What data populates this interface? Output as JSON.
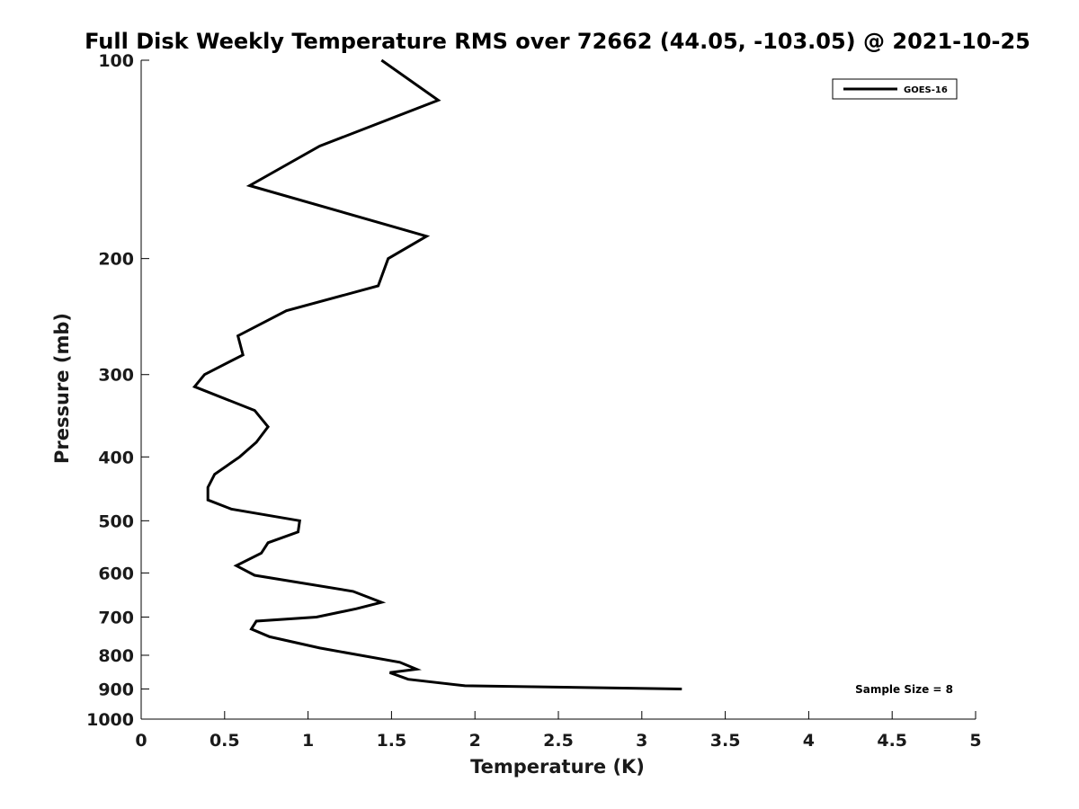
{
  "chart_data": {
    "type": "line",
    "title": "Full Disk Weekly Temperature RMS over 72662 (44.05, -103.05) @ 2021-10-25",
    "xlabel": "Temperature (K)",
    "ylabel": "Pressure (mb)",
    "xlim": [
      0,
      5
    ],
    "ylim": [
      1000,
      100
    ],
    "y_scale": "log",
    "y_reversed": true,
    "x_ticks": [
      0,
      0.5,
      1,
      1.5,
      2,
      2.5,
      3,
      3.5,
      4,
      4.5,
      5
    ],
    "x_tick_labels": [
      "0",
      "0.5",
      "1",
      "1.5",
      "2",
      "2.5",
      "3",
      "3.5",
      "4",
      "4.5",
      "5"
    ],
    "y_ticks": [
      100,
      200,
      300,
      400,
      500,
      600,
      700,
      800,
      900,
      1000
    ],
    "y_tick_labels": [
      "100",
      "200",
      "300",
      "400",
      "500",
      "600",
      "700",
      "800",
      "900",
      "1000"
    ],
    "grid": false,
    "legend_position": "top-right",
    "series": [
      {
        "name": "GOES-16",
        "color": "#000000",
        "x": [
          1.44,
          1.78,
          1.07,
          0.65,
          1.71,
          1.48,
          1.42,
          0.87,
          0.58,
          0.61,
          0.38,
          0.32,
          0.68,
          0.76,
          0.69,
          0.59,
          0.44,
          0.4,
          0.4,
          0.54,
          0.95,
          0.94,
          0.76,
          0.72,
          0.57,
          0.68,
          1.27,
          1.44,
          1.29,
          1.05,
          0.69,
          0.66,
          0.77,
          1.07,
          1.55,
          1.65,
          1.49,
          1.6,
          1.94,
          3.24
        ],
        "y": [
          100,
          115,
          135,
          155,
          185,
          200,
          220,
          240,
          262,
          280,
          300,
          313,
          340,
          360,
          380,
          400,
          425,
          445,
          465,
          480,
          500,
          520,
          540,
          560,
          585,
          605,
          640,
          665,
          680,
          700,
          710,
          730,
          750,
          780,
          820,
          840,
          850,
          870,
          890,
          900
        ]
      }
    ],
    "annotations": [
      "Sample Size = 8"
    ]
  }
}
